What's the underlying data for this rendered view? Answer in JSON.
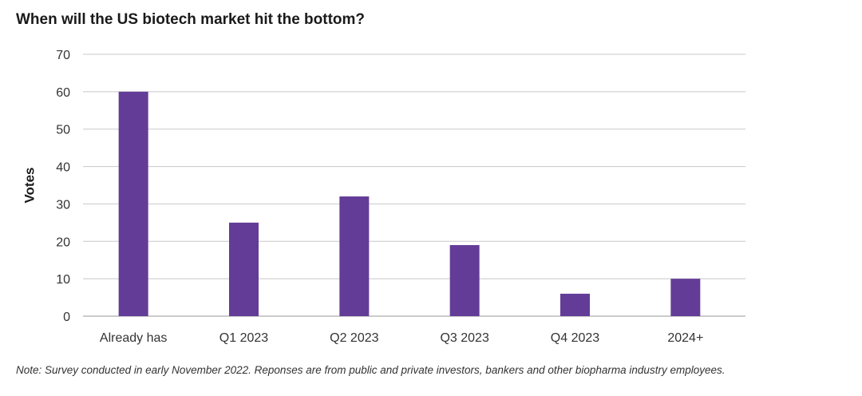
{
  "chart_data": {
    "type": "bar",
    "title": "When will the US biotech market hit the bottom?",
    "xlabel": "",
    "ylabel": "Votes",
    "categories": [
      "Already has",
      "Q1 2023",
      "Q2 2023",
      "Q3 2023",
      "Q4 2023",
      "2024+"
    ],
    "values": [
      60,
      25,
      32,
      19,
      6,
      10
    ],
    "ylim": [
      0,
      70
    ],
    "yticks": [
      0,
      10,
      20,
      30,
      40,
      50,
      60,
      70
    ],
    "grid": true,
    "bar_color": "#633c97",
    "grid_color": "#c8c8c8",
    "note": "Note: Survey conducted in early November 2022. Reponses are from public and private investors, bankers and other biopharma industry employees."
  }
}
